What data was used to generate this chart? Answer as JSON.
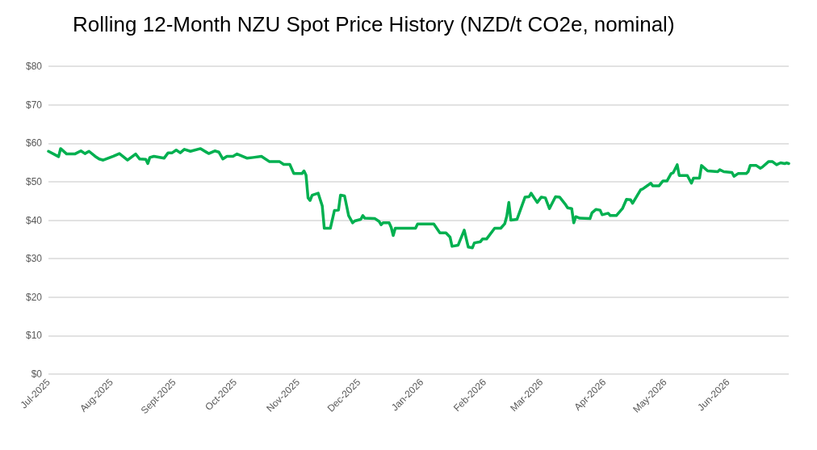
{
  "chart_data": {
    "type": "line",
    "title": "Rolling 12-Month NZU Spot Price History (NZD/t CO2e, nominal)",
    "x": [
      "2025-07-01",
      "2025-07-06",
      "2025-07-07",
      "2025-07-10",
      "2025-07-14",
      "2025-07-17",
      "2025-07-19",
      "2025-07-21",
      "2025-07-24",
      "2025-07-26",
      "2025-07-28",
      "2025-08-02",
      "2025-08-05",
      "2025-08-09",
      "2025-08-13",
      "2025-08-15",
      "2025-08-18",
      "2025-08-19",
      "2025-08-20",
      "2025-08-22",
      "2025-08-27",
      "2025-08-29",
      "2025-08-31",
      "2025-09-02",
      "2025-09-04",
      "2025-09-06",
      "2025-09-09",
      "2025-09-14",
      "2025-09-18",
      "2025-09-21",
      "2025-09-23",
      "2025-09-25",
      "2025-09-27",
      "2025-09-30",
      "2025-10-02",
      "2025-10-07",
      "2025-10-10",
      "2025-10-14",
      "2025-10-18",
      "2025-10-23",
      "2025-10-25",
      "2025-10-28",
      "2025-10-30",
      "2025-11-03",
      "2025-11-04",
      "2025-11-05",
      "2025-11-06",
      "2025-11-07",
      "2025-11-08",
      "2025-11-11",
      "2025-11-13",
      "2025-11-14",
      "2025-11-17",
      "2025-11-19",
      "2025-11-21",
      "2025-11-22",
      "2025-11-24",
      "2025-11-26",
      "2025-11-28",
      "2025-11-29",
      "2025-12-02",
      "2025-12-03",
      "2025-12-04",
      "2025-12-09",
      "2025-12-11",
      "2025-12-12",
      "2025-12-13",
      "2025-12-16",
      "2025-12-17",
      "2025-12-18",
      "2025-12-19",
      "2025-12-29",
      "2025-12-30",
      "2026-01-07",
      "2026-01-10",
      "2026-01-13",
      "2026-01-15",
      "2026-01-16",
      "2026-01-19",
      "2026-01-22",
      "2026-01-24",
      "2026-01-26",
      "2026-01-27",
      "2026-01-30",
      "2026-01-31",
      "2026-02-02",
      "2026-02-06",
      "2026-02-09",
      "2026-02-11",
      "2026-02-12",
      "2026-02-13",
      "2026-02-14",
      "2026-02-17",
      "2026-02-21",
      "2026-02-23",
      "2026-02-24",
      "2026-02-27",
      "2026-03-01",
      "2026-03-03",
      "2026-03-05",
      "2026-03-08",
      "2026-03-10",
      "2026-03-13",
      "2026-03-14",
      "2026-03-16",
      "2026-03-17",
      "2026-03-18",
      "2026-03-20",
      "2026-03-25",
      "2026-03-26",
      "2026-03-28",
      "2026-03-30",
      "2026-03-31",
      "2026-04-03",
      "2026-04-04",
      "2026-04-07",
      "2026-04-10",
      "2026-04-12",
      "2026-04-14",
      "2026-04-15",
      "2026-04-19",
      "2026-04-20",
      "2026-04-24",
      "2026-04-25",
      "2026-04-28",
      "2026-04-30",
      "2026-05-02",
      "2026-05-04",
      "2026-05-05",
      "2026-05-07",
      "2026-05-08",
      "2026-05-12",
      "2026-05-14",
      "2026-05-15",
      "2026-05-18",
      "2026-05-19",
      "2026-05-22",
      "2026-05-27",
      "2026-05-28",
      "2026-05-30",
      "2026-06-03",
      "2026-06-04",
      "2026-06-06",
      "2026-06-10",
      "2026-06-11",
      "2026-06-12",
      "2026-06-15",
      "2026-06-17",
      "2026-06-18",
      "2026-06-21",
      "2026-06-23",
      "2026-06-25",
      "2026-06-27",
      "2026-06-29",
      "2026-06-30",
      "2026-07-01"
    ],
    "series": [
      {
        "color": "#00b050",
        "values": [
          57.9,
          56.5,
          58.6,
          57.2,
          57.2,
          58.0,
          57.3,
          57.9,
          56.6,
          55.9,
          55.6,
          56.6,
          57.3,
          55.6,
          57.2,
          55.9,
          55.8,
          54.7,
          56.3,
          56.6,
          56.1,
          57.5,
          57.5,
          58.2,
          57.5,
          58.4,
          57.9,
          58.6,
          57.3,
          58.0,
          57.7,
          55.9,
          56.6,
          56.6,
          57.2,
          56.1,
          56.3,
          56.6,
          55.2,
          55.2,
          54.5,
          54.5,
          52.1,
          52.1,
          52.8,
          51.7,
          45.8,
          45.1,
          46.5,
          47.0,
          43.7,
          37.9,
          37.9,
          42.5,
          42.6,
          46.5,
          46.3,
          41.2,
          39.3,
          39.8,
          40.2,
          41.2,
          40.5,
          40.4,
          39.7,
          38.8,
          39.3,
          39.3,
          38.1,
          36.0,
          37.9,
          37.9,
          39.0,
          39.0,
          36.7,
          36.7,
          35.6,
          33.2,
          33.5,
          37.4,
          33.0,
          32.8,
          34.1,
          34.4,
          35.1,
          35.1,
          37.9,
          37.9,
          39.1,
          41.1,
          44.6,
          40.0,
          40.2,
          46.0,
          46.1,
          47.0,
          44.6,
          46.0,
          45.8,
          43.0,
          46.1,
          46.0,
          44.0,
          43.2,
          43.0,
          39.3,
          40.9,
          40.5,
          40.4,
          41.9,
          42.8,
          42.6,
          41.4,
          41.8,
          41.2,
          41.2,
          43.0,
          45.4,
          45.3,
          44.4,
          47.9,
          48.1,
          49.6,
          48.9,
          48.9,
          50.2,
          50.2,
          52.1,
          52.3,
          54.4,
          51.6,
          51.6,
          49.6,
          50.9,
          50.9,
          54.2,
          52.8,
          52.6,
          53.1,
          52.6,
          52.4,
          51.4,
          52.1,
          52.1,
          52.6,
          54.2,
          54.2,
          53.5,
          53.8,
          55.2,
          55.2,
          54.4,
          54.9,
          54.7,
          54.9,
          54.7
        ]
      }
    ],
    "xlim": [
      "2025-07-01",
      "2026-07-01"
    ],
    "xticks": [
      {
        "value": "2025-07-01",
        "label": "Jul-2025"
      },
      {
        "value": "2025-08-01",
        "label": "Aug-2025"
      },
      {
        "value": "2025-09-01",
        "label": "Sept-2025"
      },
      {
        "value": "2025-10-01",
        "label": "Oct-2025"
      },
      {
        "value": "2025-11-01",
        "label": "Nov-2025"
      },
      {
        "value": "2025-12-01",
        "label": "Dec-2025"
      },
      {
        "value": "2026-01-01",
        "label": "Jan-2026"
      },
      {
        "value": "2026-02-01",
        "label": "Feb-2026"
      },
      {
        "value": "2026-03-01",
        "label": "Mar-2026"
      },
      {
        "value": "2026-04-01",
        "label": "Apr-2026"
      },
      {
        "value": "2026-05-01",
        "label": "May-2026"
      },
      {
        "value": "2026-06-01",
        "label": "Jun-2026"
      }
    ],
    "ylim": [
      0,
      80
    ],
    "yticks": [
      {
        "value": 0,
        "label": "$0"
      },
      {
        "value": 10,
        "label": "$10"
      },
      {
        "value": 20,
        "label": "$20"
      },
      {
        "value": 30,
        "label": "$30"
      },
      {
        "value": 40,
        "label": "$40"
      },
      {
        "value": 50,
        "label": "$50"
      },
      {
        "value": 60,
        "label": "$60"
      },
      {
        "value": 70,
        "label": "$70"
      },
      {
        "value": 80,
        "label": "$80"
      }
    ],
    "grid": "y",
    "marker": "none",
    "line_style": "solid"
  }
}
